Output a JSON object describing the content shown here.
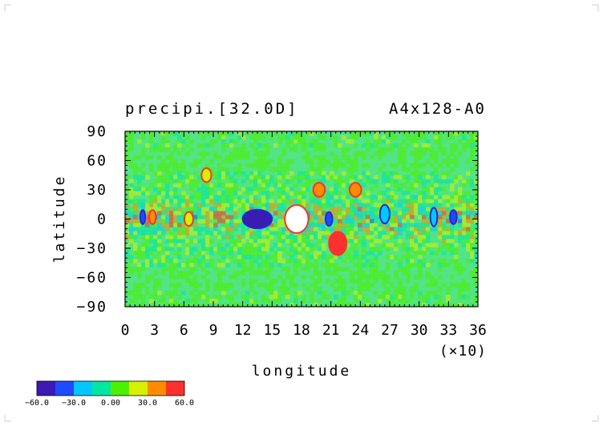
{
  "chart_data": {
    "type": "heatmap",
    "title": "precipi.[32.0D]",
    "subtitle": "A4x128-A0",
    "xlabel": "longitude",
    "ylabel": "latitude",
    "x_scale_note": "(×10)",
    "xlim": [
      0,
      36
    ],
    "ylim": [
      -90,
      90
    ],
    "x_ticks": [
      "0",
      "3",
      "6",
      "9",
      "12",
      "15",
      "18",
      "21",
      "24",
      "27",
      "30",
      "33",
      "36"
    ],
    "y_ticks": [
      "90",
      "60",
      "30",
      "0",
      "−30",
      "−60",
      "−90"
    ],
    "colorbar": {
      "labels": [
        "−60.0",
        "−30.0",
        "0.00",
        "30.0",
        "60.0"
      ],
      "levels": [
        -60,
        -45,
        -30,
        -15,
        0,
        15,
        30,
        45,
        60
      ],
      "colors": [
        "#3c1ab4",
        "#1e4bff",
        "#00c8ff",
        "#00e8a0",
        "#4cf000",
        "#d6f000",
        "#ff8c00",
        "#ff3030"
      ]
    },
    "background_color": "#52e486",
    "features": [
      {
        "lon": 6.5,
        "lat": 0,
        "value": 22,
        "rx": 0.45,
        "ry": 3
      },
      {
        "lon": 13.5,
        "lat": 0,
        "value": -60,
        "rx": 1.5,
        "ry": 4
      },
      {
        "lon": 17.5,
        "lat": 0,
        "value": 70,
        "rx": 1.2,
        "ry": 6
      },
      {
        "lon": 20.8,
        "lat": 0,
        "value": -35,
        "rx": 0.35,
        "ry": 3
      },
      {
        "lon": 21.7,
        "lat": -25,
        "value": 52,
        "rx": 0.9,
        "ry": 5
      },
      {
        "lon": 19.8,
        "lat": 30,
        "value": 35,
        "rx": 0.6,
        "ry": 3
      },
      {
        "lon": 23.5,
        "lat": 30,
        "value": 40,
        "rx": 0.6,
        "ry": 3
      },
      {
        "lon": 2.8,
        "lat": 2,
        "value": 35,
        "rx": 0.35,
        "ry": 3
      },
      {
        "lon": 1.8,
        "lat": 2,
        "value": -40,
        "rx": 0.25,
        "ry": 3
      },
      {
        "lon": 33.5,
        "lat": 2,
        "value": -40,
        "rx": 0.35,
        "ry": 3
      },
      {
        "lon": 8.3,
        "lat": 45,
        "value": 28,
        "rx": 0.5,
        "ry": 3
      },
      {
        "lon": 31.5,
        "lat": 2,
        "value": -25,
        "rx": 0.35,
        "ry": 4
      },
      {
        "lon": 26.5,
        "lat": 5,
        "value": -25,
        "rx": 0.5,
        "ry": 4
      }
    ],
    "grid": false,
    "legend": "bottom-left"
  }
}
